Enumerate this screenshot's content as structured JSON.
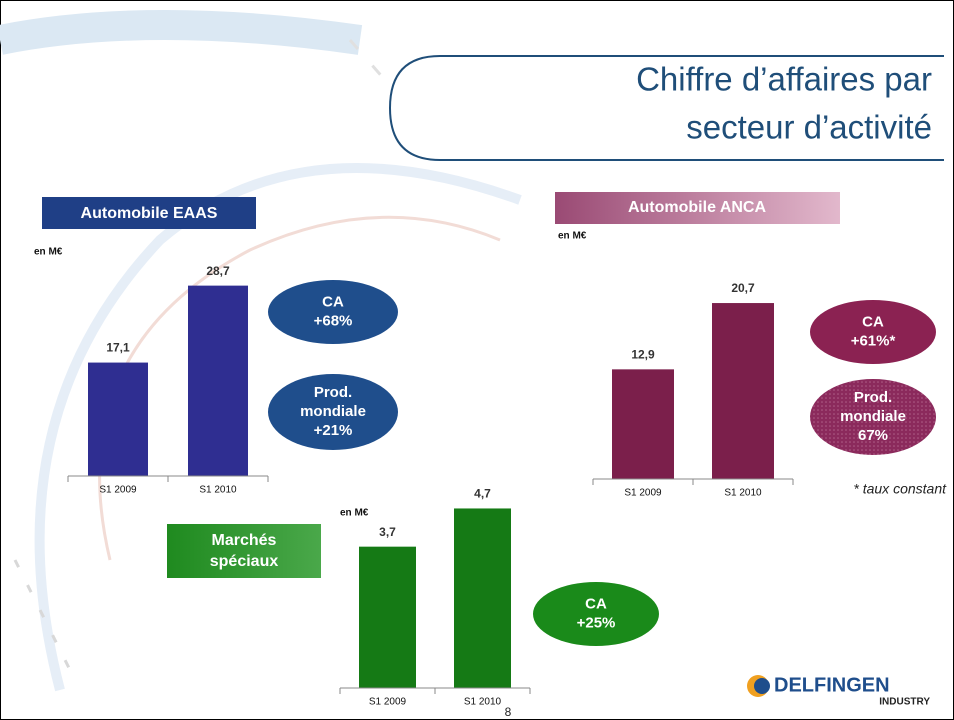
{
  "title": [
    "Chiffre d’affaires par",
    "secteur d’activité"
  ],
  "chart_data": [
    {
      "type": "bar",
      "title": "Automobile EAAS",
      "unit_label": "en M€",
      "categories": [
        "S1 2009",
        "S1 2010"
      ],
      "values": [
        17.1,
        28.7
      ],
      "value_labels": [
        "17,1",
        "28,7"
      ],
      "color": "#2f2e91",
      "ylim": [
        0,
        30
      ]
    },
    {
      "type": "bar",
      "title": "Automobile ANCA",
      "unit_label": "en M€",
      "categories": [
        "S1 2009",
        "S1 2010"
      ],
      "values": [
        12.9,
        20.7
      ],
      "value_labels": [
        "12,9",
        "20,7"
      ],
      "color": "#7b1f4b",
      "ylim": [
        0,
        22
      ]
    },
    {
      "type": "bar",
      "title": "Marchés spéciaux",
      "unit_label": "en M€",
      "categories": [
        "S1 2009",
        "S1 2010"
      ],
      "values": [
        3.7,
        4.7
      ],
      "value_labels": [
        "3,7",
        "4,7"
      ],
      "color": "#157a15",
      "ylim": [
        0,
        5
      ]
    }
  ],
  "badges": [
    [
      "CA",
      "+68%"
    ],
    [
      "Prod.",
      "mondiale",
      "+21%"
    ],
    [
      "CA",
      "+61%*"
    ],
    [
      "Prod.",
      "mondiale",
      "67%"
    ],
    [
      "CA",
      "+25%"
    ]
  ],
  "footnote": "* taux constant",
  "logo": {
    "name": "DELFINGEN",
    "sub": "INDUSTRY"
  },
  "page_number": "8"
}
